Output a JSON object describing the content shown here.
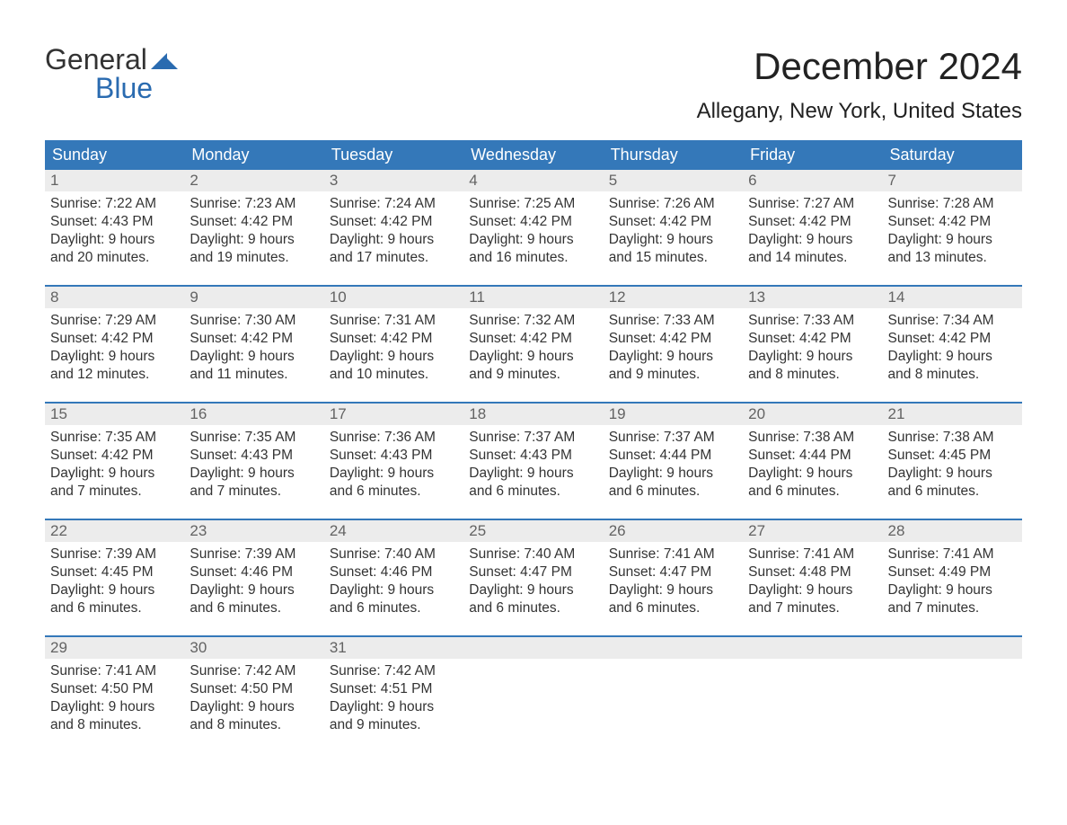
{
  "logo": {
    "word1": "General",
    "word2": "Blue",
    "icon_color": "#2a6bb0"
  },
  "title": "December 2024",
  "location": "Allegany, New York, United States",
  "colors": {
    "header_bg": "#3478b9",
    "header_text": "#ffffff",
    "daynum_bg": "#ececec",
    "daynum_text": "#636363",
    "body_text": "#333333",
    "rule": "#3478b9"
  },
  "day_names": [
    "Sunday",
    "Monday",
    "Tuesday",
    "Wednesday",
    "Thursday",
    "Friday",
    "Saturday"
  ],
  "weeks": [
    [
      {
        "n": "1",
        "sunrise": "Sunrise: 7:22 AM",
        "sunset": "Sunset: 4:43 PM",
        "d1": "Daylight: 9 hours",
        "d2": "and 20 minutes."
      },
      {
        "n": "2",
        "sunrise": "Sunrise: 7:23 AM",
        "sunset": "Sunset: 4:42 PM",
        "d1": "Daylight: 9 hours",
        "d2": "and 19 minutes."
      },
      {
        "n": "3",
        "sunrise": "Sunrise: 7:24 AM",
        "sunset": "Sunset: 4:42 PM",
        "d1": "Daylight: 9 hours",
        "d2": "and 17 minutes."
      },
      {
        "n": "4",
        "sunrise": "Sunrise: 7:25 AM",
        "sunset": "Sunset: 4:42 PM",
        "d1": "Daylight: 9 hours",
        "d2": "and 16 minutes."
      },
      {
        "n": "5",
        "sunrise": "Sunrise: 7:26 AM",
        "sunset": "Sunset: 4:42 PM",
        "d1": "Daylight: 9 hours",
        "d2": "and 15 minutes."
      },
      {
        "n": "6",
        "sunrise": "Sunrise: 7:27 AM",
        "sunset": "Sunset: 4:42 PM",
        "d1": "Daylight: 9 hours",
        "d2": "and 14 minutes."
      },
      {
        "n": "7",
        "sunrise": "Sunrise: 7:28 AM",
        "sunset": "Sunset: 4:42 PM",
        "d1": "Daylight: 9 hours",
        "d2": "and 13 minutes."
      }
    ],
    [
      {
        "n": "8",
        "sunrise": "Sunrise: 7:29 AM",
        "sunset": "Sunset: 4:42 PM",
        "d1": "Daylight: 9 hours",
        "d2": "and 12 minutes."
      },
      {
        "n": "9",
        "sunrise": "Sunrise: 7:30 AM",
        "sunset": "Sunset: 4:42 PM",
        "d1": "Daylight: 9 hours",
        "d2": "and 11 minutes."
      },
      {
        "n": "10",
        "sunrise": "Sunrise: 7:31 AM",
        "sunset": "Sunset: 4:42 PM",
        "d1": "Daylight: 9 hours",
        "d2": "and 10 minutes."
      },
      {
        "n": "11",
        "sunrise": "Sunrise: 7:32 AM",
        "sunset": "Sunset: 4:42 PM",
        "d1": "Daylight: 9 hours",
        "d2": "and 9 minutes."
      },
      {
        "n": "12",
        "sunrise": "Sunrise: 7:33 AM",
        "sunset": "Sunset: 4:42 PM",
        "d1": "Daylight: 9 hours",
        "d2": "and 9 minutes."
      },
      {
        "n": "13",
        "sunrise": "Sunrise: 7:33 AM",
        "sunset": "Sunset: 4:42 PM",
        "d1": "Daylight: 9 hours",
        "d2": "and 8 minutes."
      },
      {
        "n": "14",
        "sunrise": "Sunrise: 7:34 AM",
        "sunset": "Sunset: 4:42 PM",
        "d1": "Daylight: 9 hours",
        "d2": "and 8 minutes."
      }
    ],
    [
      {
        "n": "15",
        "sunrise": "Sunrise: 7:35 AM",
        "sunset": "Sunset: 4:42 PM",
        "d1": "Daylight: 9 hours",
        "d2": "and 7 minutes."
      },
      {
        "n": "16",
        "sunrise": "Sunrise: 7:35 AM",
        "sunset": "Sunset: 4:43 PM",
        "d1": "Daylight: 9 hours",
        "d2": "and 7 minutes."
      },
      {
        "n": "17",
        "sunrise": "Sunrise: 7:36 AM",
        "sunset": "Sunset: 4:43 PM",
        "d1": "Daylight: 9 hours",
        "d2": "and 6 minutes."
      },
      {
        "n": "18",
        "sunrise": "Sunrise: 7:37 AM",
        "sunset": "Sunset: 4:43 PM",
        "d1": "Daylight: 9 hours",
        "d2": "and 6 minutes."
      },
      {
        "n": "19",
        "sunrise": "Sunrise: 7:37 AM",
        "sunset": "Sunset: 4:44 PM",
        "d1": "Daylight: 9 hours",
        "d2": "and 6 minutes."
      },
      {
        "n": "20",
        "sunrise": "Sunrise: 7:38 AM",
        "sunset": "Sunset: 4:44 PM",
        "d1": "Daylight: 9 hours",
        "d2": "and 6 minutes."
      },
      {
        "n": "21",
        "sunrise": "Sunrise: 7:38 AM",
        "sunset": "Sunset: 4:45 PM",
        "d1": "Daylight: 9 hours",
        "d2": "and 6 minutes."
      }
    ],
    [
      {
        "n": "22",
        "sunrise": "Sunrise: 7:39 AM",
        "sunset": "Sunset: 4:45 PM",
        "d1": "Daylight: 9 hours",
        "d2": "and 6 minutes."
      },
      {
        "n": "23",
        "sunrise": "Sunrise: 7:39 AM",
        "sunset": "Sunset: 4:46 PM",
        "d1": "Daylight: 9 hours",
        "d2": "and 6 minutes."
      },
      {
        "n": "24",
        "sunrise": "Sunrise: 7:40 AM",
        "sunset": "Sunset: 4:46 PM",
        "d1": "Daylight: 9 hours",
        "d2": "and 6 minutes."
      },
      {
        "n": "25",
        "sunrise": "Sunrise: 7:40 AM",
        "sunset": "Sunset: 4:47 PM",
        "d1": "Daylight: 9 hours",
        "d2": "and 6 minutes."
      },
      {
        "n": "26",
        "sunrise": "Sunrise: 7:41 AM",
        "sunset": "Sunset: 4:47 PM",
        "d1": "Daylight: 9 hours",
        "d2": "and 6 minutes."
      },
      {
        "n": "27",
        "sunrise": "Sunrise: 7:41 AM",
        "sunset": "Sunset: 4:48 PM",
        "d1": "Daylight: 9 hours",
        "d2": "and 7 minutes."
      },
      {
        "n": "28",
        "sunrise": "Sunrise: 7:41 AM",
        "sunset": "Sunset: 4:49 PM",
        "d1": "Daylight: 9 hours",
        "d2": "and 7 minutes."
      }
    ],
    [
      {
        "n": "29",
        "sunrise": "Sunrise: 7:41 AM",
        "sunset": "Sunset: 4:50 PM",
        "d1": "Daylight: 9 hours",
        "d2": "and 8 minutes."
      },
      {
        "n": "30",
        "sunrise": "Sunrise: 7:42 AM",
        "sunset": "Sunset: 4:50 PM",
        "d1": "Daylight: 9 hours",
        "d2": "and 8 minutes."
      },
      {
        "n": "31",
        "sunrise": "Sunrise: 7:42 AM",
        "sunset": "Sunset: 4:51 PM",
        "d1": "Daylight: 9 hours",
        "d2": "and 9 minutes."
      },
      {
        "n": "",
        "empty": true
      },
      {
        "n": "",
        "empty": true
      },
      {
        "n": "",
        "empty": true
      },
      {
        "n": "",
        "empty": true
      }
    ]
  ]
}
